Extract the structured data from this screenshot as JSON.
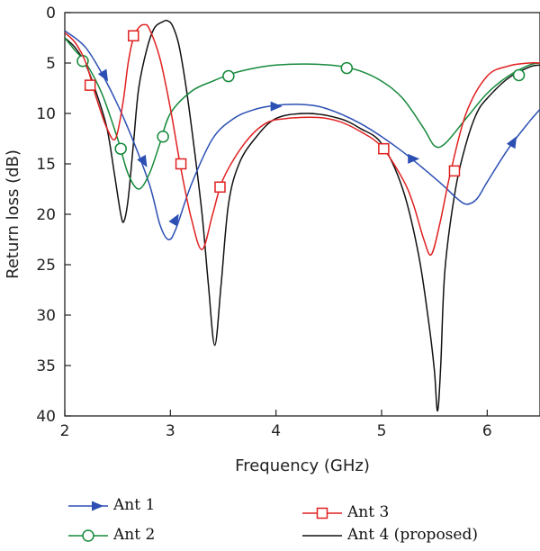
{
  "chart_data": {
    "type": "line",
    "title": "",
    "xlabel": "Frequency (GHz)",
    "ylabel": "Return loss (dB)",
    "xlim": [
      2,
      6.5
    ],
    "ylim": [
      0,
      40
    ],
    "y_inverted": true,
    "grid": false,
    "legend_position": "bottom",
    "xticks": [
      2,
      3,
      4,
      5,
      6
    ],
    "yticks": [
      0,
      5,
      10,
      15,
      20,
      25,
      30,
      35,
      40
    ],
    "series": [
      {
        "name": "Ant 1",
        "color": "#2b4fb3",
        "marker": "arrow",
        "x": [
          2.0,
          2.2,
          2.4,
          2.6,
          2.8,
          2.9,
          2.98,
          3.05,
          3.2,
          3.4,
          3.6,
          3.8,
          4.0,
          4.2,
          4.4,
          4.6,
          4.8,
          5.0,
          5.2,
          5.4,
          5.6,
          5.7,
          5.8,
          5.9,
          6.0,
          6.2,
          6.4,
          6.5
        ],
        "y": [
          1.8,
          3.5,
          7.0,
          11.5,
          17.0,
          21.0,
          22.5,
          21.5,
          17.0,
          12.5,
          10.5,
          9.6,
          9.2,
          9.1,
          9.3,
          10.0,
          11.0,
          12.3,
          13.8,
          15.5,
          17.3,
          18.3,
          19.0,
          18.5,
          16.8,
          13.5,
          10.8,
          9.6
        ],
        "marker_x": [
          2.38,
          2.75,
          3.05,
          4.0,
          5.3,
          6.25
        ],
        "marker_y": [
          6.3,
          14.8,
          20.5,
          9.3,
          14.5,
          12.8
        ],
        "marker_dir": [
          "down",
          "down",
          "up",
          "right",
          "right",
          "up"
        ]
      },
      {
        "name": "Ant 2",
        "color": "#15893a",
        "marker": "circle",
        "x": [
          2.0,
          2.1,
          2.2,
          2.35,
          2.5,
          2.6,
          2.7,
          2.8,
          2.9,
          3.0,
          3.2,
          3.4,
          3.6,
          3.8,
          4.0,
          4.3,
          4.6,
          4.8,
          5.0,
          5.2,
          5.4,
          5.5,
          5.6,
          5.8,
          6.0,
          6.2,
          6.4,
          6.5
        ],
        "y": [
          2.5,
          3.8,
          5.0,
          8.0,
          12.5,
          16.0,
          17.5,
          16.0,
          13.0,
          10.0,
          7.8,
          6.8,
          6.0,
          5.5,
          5.2,
          5.1,
          5.3,
          5.8,
          6.8,
          8.5,
          11.5,
          13.2,
          13.0,
          10.5,
          8.0,
          6.3,
          5.2,
          5.0
        ],
        "marker_x": [
          2.17,
          2.53,
          2.93,
          3.55,
          4.67,
          6.3
        ],
        "marker_y": [
          4.8,
          13.5,
          12.3,
          6.3,
          5.5,
          6.2
        ]
      },
      {
        "name": "Ant 3",
        "color": "#e02020",
        "marker": "square",
        "x": [
          2.0,
          2.1,
          2.2,
          2.3,
          2.4,
          2.48,
          2.55,
          2.6,
          2.65,
          2.7,
          2.75,
          2.8,
          2.9,
          3.0,
          3.1,
          3.2,
          3.3,
          3.4,
          3.5,
          3.7,
          3.9,
          4.1,
          4.4,
          4.6,
          4.8,
          5.0,
          5.2,
          5.3,
          5.4,
          5.47,
          5.55,
          5.65,
          5.8,
          6.0,
          6.2,
          6.4,
          6.5
        ],
        "y": [
          2.0,
          3.0,
          5.0,
          8.5,
          11.5,
          12.5,
          9.0,
          5.0,
          2.5,
          1.5,
          1.2,
          1.6,
          4.5,
          9.5,
          15.5,
          20.5,
          23.5,
          20.0,
          16.5,
          13.0,
          11.0,
          10.5,
          10.4,
          10.8,
          11.8,
          13.3,
          16.5,
          19.0,
          22.5,
          24.0,
          21.0,
          16.0,
          10.0,
          6.3,
          5.3,
          5.0,
          5.0
        ],
        "marker_x": [
          2.24,
          2.65,
          3.1,
          3.47,
          5.02,
          5.69
        ],
        "marker_y": [
          7.2,
          2.3,
          15.0,
          17.3,
          13.5,
          15.7
        ]
      },
      {
        "name": "Ant 4 (proposed)",
        "color": "#111111",
        "marker": "none",
        "x": [
          2.0,
          2.1,
          2.2,
          2.3,
          2.4,
          2.47,
          2.53,
          2.56,
          2.6,
          2.65,
          2.7,
          2.78,
          2.85,
          2.93,
          2.97,
          3.02,
          3.08,
          3.15,
          3.22,
          3.3,
          3.36,
          3.42,
          3.48,
          3.55,
          3.65,
          3.8,
          4.0,
          4.3,
          4.6,
          4.8,
          5.0,
          5.2,
          5.35,
          5.45,
          5.5,
          5.53,
          5.56,
          5.6,
          5.7,
          5.8,
          5.9,
          6.0,
          6.2,
          6.4,
          6.5
        ],
        "y": [
          2.5,
          3.5,
          5.2,
          8.0,
          11.5,
          16.0,
          20.0,
          20.7,
          18.5,
          13.0,
          7.5,
          3.5,
          1.5,
          0.9,
          0.8,
          1.3,
          3.2,
          7.5,
          13.0,
          20.0,
          27.0,
          33.0,
          27.0,
          19.0,
          15.0,
          12.5,
          10.5,
          10.0,
          10.5,
          11.5,
          13.0,
          17.5,
          24.0,
          31.0,
          35.5,
          39.5,
          35.0,
          25.5,
          17.5,
          13.0,
          10.0,
          8.5,
          6.5,
          5.4,
          5.2
        ]
      }
    ]
  }
}
